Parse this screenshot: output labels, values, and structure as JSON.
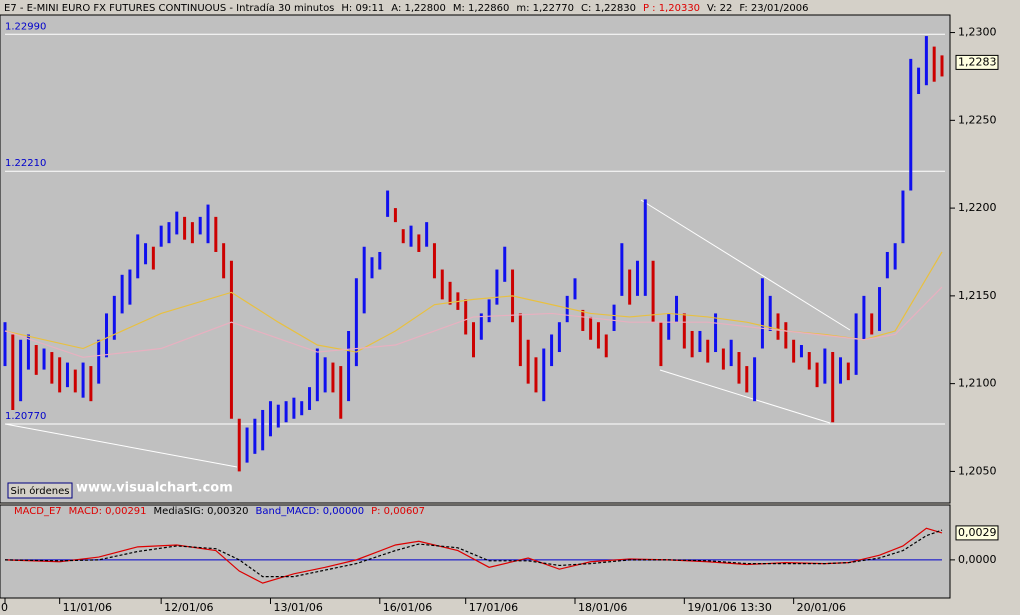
{
  "header": [
    {
      "text": "E7 - E-MINI EURO FX FUTURES CONTINUOUS - Intradía 30 minutos",
      "color": "#000000"
    },
    {
      "text": "H: 09:11",
      "color": "#000000"
    },
    {
      "text": "A: 1,22800",
      "color": "#000000"
    },
    {
      "text": "M: 1,22860",
      "color": "#000000"
    },
    {
      "text": "m: 1,22770",
      "color": "#000000"
    },
    {
      "text": "C: 1,22830",
      "color": "#000000"
    },
    {
      "text": "P : 1,20330",
      "color": "#dd0000"
    },
    {
      "text": "V: 22",
      "color": "#000000"
    },
    {
      "text": "F: 23/01/2006",
      "color": "#000000"
    }
  ],
  "button": "Sin órdenes",
  "watermark": "www.visualchart.com",
  "chart_data": [
    {
      "type": "range",
      "ylim": [
        1.2032,
        1.231
      ],
      "yticks": [
        {
          "value": 1.205,
          "label": "1,2050"
        },
        {
          "value": 1.21,
          "label": "1,2100"
        },
        {
          "value": 1.215,
          "label": "1,2150"
        },
        {
          "value": 1.22,
          "label": "1,2200"
        },
        {
          "value": 1.225,
          "label": "1,2250"
        },
        {
          "value": 1.23,
          "label": "1,2300"
        }
      ],
      "xlim": [
        0,
        120
      ],
      "xticks": [
        0,
        {
          "value": 7,
          "label": "11/01/06"
        },
        {
          "value": 20,
          "label": "12/01/06"
        },
        {
          "value": 34,
          "label": "13/01/06"
        },
        {
          "value": 48,
          "label": "16/01/06"
        },
        {
          "value": 59,
          "label": "17/01/06"
        },
        {
          "value": 73,
          "label": "18/01/06"
        },
        {
          "value": 87,
          "label": "19/01/06 13:30"
        },
        {
          "value": 101,
          "label": "20/01/06"
        }
      ],
      "up_color": "#1010ee",
      "down_color": "#cc0000",
      "high": [
        1.2135,
        1.2128,
        1.2125,
        1.2128,
        1.2122,
        1.212,
        1.2118,
        1.2115,
        1.2112,
        1.2108,
        1.2112,
        1.211,
        1.2125,
        1.214,
        1.215,
        1.2162,
        1.2165,
        1.2185,
        1.218,
        1.2178,
        1.219,
        1.2192,
        1.2198,
        1.2195,
        1.2192,
        1.2195,
        1.2202,
        1.2195,
        1.218,
        1.217,
        1.208,
        1.2075,
        1.208,
        1.2085,
        1.209,
        1.2088,
        1.209,
        1.2092,
        1.209,
        1.2098,
        1.212,
        1.2115,
        1.2112,
        1.211,
        1.213,
        1.216,
        1.2178,
        1.2172,
        1.2175,
        1.221,
        1.22,
        1.2188,
        1.219,
        1.2185,
        1.2192,
        1.218,
        1.2165,
        1.2158,
        1.2152,
        1.2148,
        1.2135,
        1.214,
        1.2148,
        1.2165,
        1.2178,
        1.2165,
        1.214,
        1.2125,
        1.2115,
        1.212,
        1.2128,
        1.2135,
        1.215,
        1.216,
        1.2142,
        1.2138,
        1.2135,
        1.2128,
        1.2145,
        1.218,
        1.2165,
        1.217,
        1.2205,
        1.217,
        1.2135,
        1.214,
        1.215,
        1.214,
        1.213,
        1.213,
        1.2125,
        1.214,
        1.212,
        1.2125,
        1.2118,
        1.211,
        1.2115,
        1.216,
        1.215,
        1.214,
        1.2135,
        1.2125,
        1.2122,
        1.2118,
        1.2112,
        1.212,
        1.2118,
        1.2115,
        1.2112,
        1.214,
        1.215,
        1.214,
        1.2155,
        1.2175,
        1.218,
        1.221,
        1.2285,
        1.228,
        1.2298,
        1.2292,
        1.2287
      ],
      "low": [
        1.211,
        1.2085,
        1.209,
        1.2108,
        1.2105,
        1.2108,
        1.21,
        1.2095,
        1.2098,
        1.2095,
        1.2092,
        1.209,
        1.21,
        1.2115,
        1.2125,
        1.214,
        1.2145,
        1.216,
        1.2168,
        1.2165,
        1.2178,
        1.218,
        1.2185,
        1.2182,
        1.218,
        1.2185,
        1.218,
        1.2175,
        1.216,
        1.208,
        1.205,
        1.2055,
        1.206,
        1.2062,
        1.207,
        1.2075,
        1.2078,
        1.208,
        1.2082,
        1.2085,
        1.209,
        1.2095,
        1.2095,
        1.208,
        1.209,
        1.211,
        1.214,
        1.216,
        1.2165,
        1.2195,
        1.2192,
        1.218,
        1.2178,
        1.2175,
        1.2178,
        1.216,
        1.2148,
        1.2145,
        1.2142,
        1.2128,
        1.2115,
        1.2125,
        1.2135,
        1.2145,
        1.2158,
        1.2135,
        1.211,
        1.21,
        1.2095,
        1.209,
        1.211,
        1.2118,
        1.2135,
        1.2148,
        1.213,
        1.2125,
        1.212,
        1.2115,
        1.213,
        1.215,
        1.2145,
        1.215,
        1.215,
        1.2135,
        1.211,
        1.2125,
        1.2135,
        1.212,
        1.2115,
        1.2118,
        1.2112,
        1.2118,
        1.2108,
        1.211,
        1.21,
        1.2095,
        1.209,
        1.212,
        1.213,
        1.2125,
        1.212,
        1.2112,
        1.2115,
        1.2108,
        1.2098,
        1.21,
        1.2078,
        1.21,
        1.2102,
        1.2105,
        1.2125,
        1.2128,
        1.213,
        1.216,
        1.2165,
        1.218,
        1.221,
        1.2265,
        1.227,
        1.2272,
        1.2275
      ],
      "levels": [
        {
          "value": 1.2299,
          "label": "1.22990"
        },
        {
          "value": 1.2221,
          "label": "1.22210"
        },
        {
          "value": 1.2077,
          "label": "1.20770"
        }
      ],
      "last_value": {
        "value": 1.2283,
        "label": "1,2283"
      },
      "series": [
        {
          "color": "#e8c040",
          "x": [
            0,
            10,
            20,
            29,
            35,
            40,
            45,
            50,
            55,
            60,
            65,
            70,
            75,
            80,
            85,
            90,
            95,
            100,
            105,
            110,
            114,
            120
          ],
          "values": [
            1.213,
            1.212,
            1.214,
            1.2152,
            1.2135,
            1.2122,
            1.2118,
            1.213,
            1.2145,
            1.2148,
            1.215,
            1.2145,
            1.214,
            1.2138,
            1.214,
            1.2138,
            1.2135,
            1.213,
            1.2128,
            1.2125,
            1.213,
            1.2175
          ]
        },
        {
          "color": "#e8b0c0",
          "x": [
            0,
            10,
            20,
            29,
            40,
            50,
            60,
            70,
            80,
            90,
            100,
            110,
            114,
            120
          ],
          "values": [
            1.213,
            1.2115,
            1.212,
            1.2135,
            1.2118,
            1.2122,
            1.2138,
            1.214,
            1.2135,
            1.2135,
            1.213,
            1.2125,
            1.2128,
            1.2155
          ]
        }
      ]
    },
    {
      "type": "line",
      "header": [
        {
          "text": "MACD_E7",
          "color": "#dd0000"
        },
        {
          "text": "MACD: 0,00291",
          "color": "#dd0000"
        },
        {
          "text": "MediaSIG: 0,00320",
          "color": "#000000"
        },
        {
          "text": "Band_MACD: 0,00000",
          "color": "#0000cc"
        },
        {
          "text": "P: 0,00607",
          "color": "#dd0000"
        }
      ],
      "ylim": [
        -0.0041,
        0.0059
      ],
      "yticks": [
        {
          "value": 0,
          "label": "0,0000"
        }
      ],
      "xlim": [
        0,
        120
      ],
      "band_level": 0,
      "band_color": "#0000cc",
      "last_value": {
        "value": 0.0029,
        "label": "0,0029"
      },
      "series": [
        {
          "color": "#dd0000",
          "x": [
            0,
            7,
            12,
            17,
            22,
            27,
            30,
            33,
            37,
            41,
            45,
            50,
            53,
            58,
            62,
            67,
            71,
            75,
            80,
            85,
            90,
            95,
            100,
            105,
            108,
            112,
            115,
            118,
            120
          ],
          "values": [
            0,
            -0.0002,
            0.0003,
            0.0014,
            0.0016,
            0.001,
            -0.0012,
            -0.0025,
            -0.0015,
            -0.0008,
            0,
            0.0016,
            0.002,
            0.001,
            -0.0008,
            0.0002,
            -0.001,
            -0.0002,
            0.0001,
            0,
            -0.0002,
            -0.0005,
            -0.0003,
            -0.0004,
            -0.0003,
            0.0005,
            0.0015,
            0.0034,
            0.0029
          ]
        },
        {
          "color": "#000000",
          "dashed": true,
          "x": [
            0,
            7,
            12,
            17,
            22,
            27,
            30,
            33,
            37,
            41,
            45,
            50,
            53,
            58,
            62,
            67,
            71,
            75,
            80,
            85,
            90,
            95,
            100,
            105,
            108,
            112,
            115,
            118,
            120
          ],
          "values": [
            0,
            -0.0001,
            0,
            0.0009,
            0.0015,
            0.0012,
            0,
            -0.0018,
            -0.0018,
            -0.0011,
            -0.0004,
            0.001,
            0.0017,
            0.0013,
            -0.0001,
            -0.0001,
            -0.0006,
            -0.0004,
            0,
            0,
            -0.0001,
            -0.0004,
            -0.0004,
            -0.0004,
            -0.0003,
            0.0002,
            0.001,
            0.0026,
            0.0032
          ]
        }
      ]
    }
  ]
}
